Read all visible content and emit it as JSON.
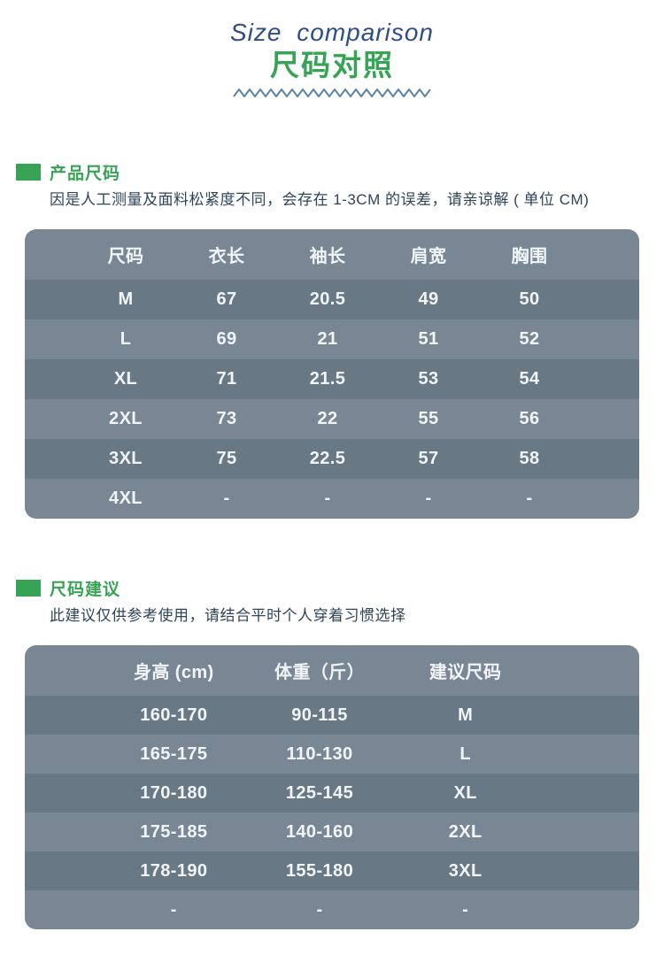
{
  "colors": {
    "green": "#36a355",
    "title_blue": "#2f4e86",
    "zigzag": "#5d83ab",
    "row_light": "#798794",
    "row_dark": "#697885",
    "table_text": "#f2f5f7",
    "body_text": "#2e4459"
  },
  "header": {
    "title_en": "Size comparison",
    "title_zh": "尺码对照"
  },
  "section_product": {
    "title": "产品尺码",
    "note": "因是人工测量及面料松紧度不同，会存在 1-3CM 的误差，请亲谅解 ( 单位 CM)",
    "table": {
      "headers": [
        "尺码",
        "衣长",
        "袖长",
        "肩宽",
        "胸围"
      ],
      "rows": [
        [
          "M",
          "67",
          "20.5",
          "49",
          "50"
        ],
        [
          "L",
          "69",
          "21",
          "51",
          "52"
        ],
        [
          "XL",
          "71",
          "21.5",
          "53",
          "54"
        ],
        [
          "2XL",
          "73",
          "22",
          "55",
          "56"
        ],
        [
          "3XL",
          "75",
          "22.5",
          "57",
          "58"
        ],
        [
          "4XL",
          "-",
          "-",
          "-",
          "-"
        ]
      ]
    }
  },
  "section_advice": {
    "title": "尺码建议",
    "note": "此建议仅供参考使用，请结合平时个人穿着习惯选择",
    "table": {
      "headers": [
        "身高 (cm)",
        "体重（斤）",
        "建议尺码"
      ],
      "rows": [
        [
          "160-170",
          "90-115",
          "M"
        ],
        [
          "165-175",
          "110-130",
          "L"
        ],
        [
          "170-180",
          "125-145",
          "XL"
        ],
        [
          "175-185",
          "140-160",
          "2XL"
        ],
        [
          "178-190",
          "155-180",
          "3XL"
        ],
        [
          "-",
          "-",
          "-"
        ]
      ]
    }
  }
}
